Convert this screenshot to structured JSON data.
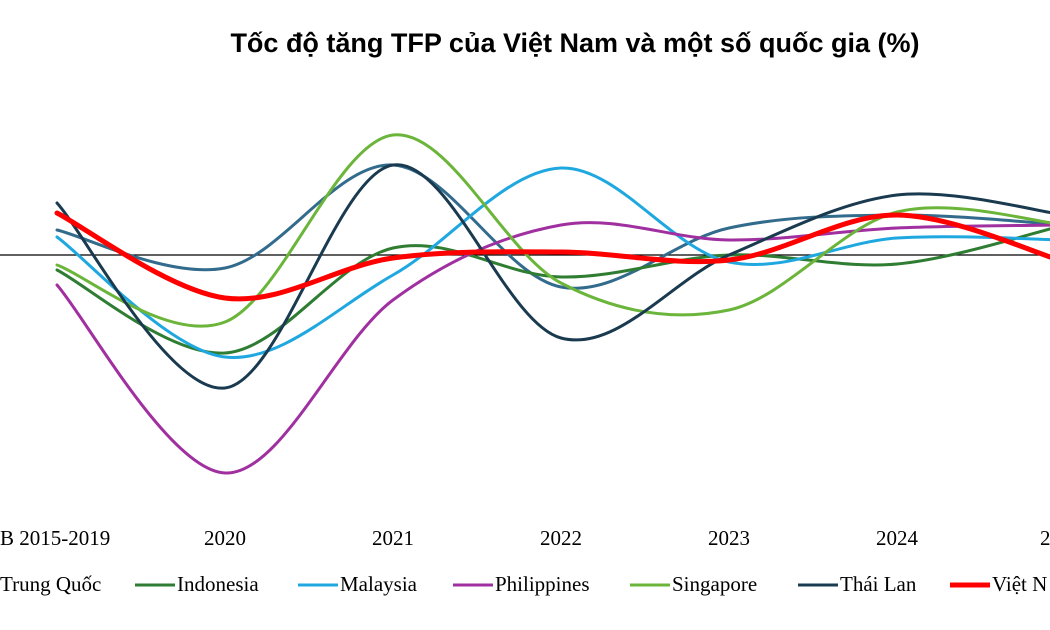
{
  "chart_data": {
    "type": "line",
    "title": "Tốc độ tăng TFP của Việt Nam và một số quốc gia (%)",
    "categories": [
      "B 2015-2019",
      "2020",
      "2021",
      "2022",
      "2023",
      "2024",
      "2"
    ],
    "ylim": [
      -4.7,
      3.1
    ],
    "series": [
      {
        "name": "Trung Quốc",
        "color": "#336b8c",
        "values": [
          0.5,
          -0.26,
          1.8,
          -0.64,
          0.54,
          0.8,
          0.6
        ]
      },
      {
        "name": "Indonesia",
        "color": "#2e7d32",
        "values": [
          -0.3,
          -1.96,
          0.14,
          -0.44,
          0,
          -0.18,
          0.6
        ]
      },
      {
        "name": "Malaysia",
        "color": "#1fa8e0",
        "values": [
          0.36,
          -2.04,
          -0.4,
          1.74,
          -0.14,
          0.34,
          0.3
        ]
      },
      {
        "name": "Philippines",
        "color": "#a030a0",
        "values": [
          -0.6,
          -4.36,
          -0.9,
          0.6,
          0.3,
          0.54,
          0.6
        ]
      },
      {
        "name": "Singapore",
        "color": "#6ab53a",
        "values": [
          -0.2,
          -1.34,
          2.4,
          -0.56,
          -1.1,
          0.86,
          0.6
        ]
      },
      {
        "name": "Thái Lan",
        "color": "#1a3a50",
        "values": [
          1.04,
          -2.66,
          1.8,
          -1.66,
          0,
          1.2,
          0.8
        ]
      },
      {
        "name": "Việt N",
        "color": "#ff0000",
        "values": [
          0.84,
          -0.86,
          -0.06,
          0.06,
          -0.1,
          0.8,
          -0.14
        ]
      }
    ]
  }
}
